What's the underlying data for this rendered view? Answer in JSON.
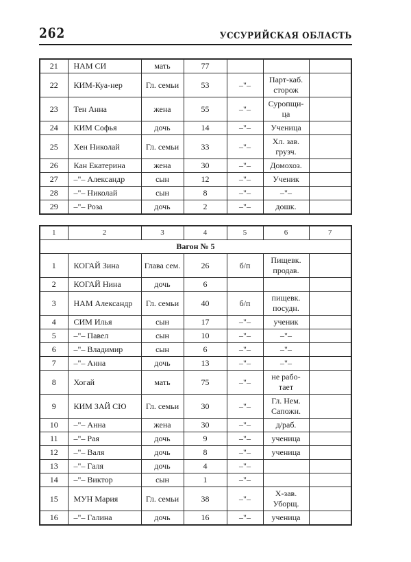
{
  "page": {
    "number": "262",
    "header": "УССУРИЙСКАЯ ОБЛАСТЬ"
  },
  "table1": {
    "rows": [
      [
        "21",
        "НАМ СИ",
        "мать",
        "77",
        "",
        "",
        ""
      ],
      [
        "22",
        "КИМ-Куа-нер",
        "Гл. семьи",
        "53",
        "–\"–",
        "Парт-каб.\nсторож",
        ""
      ],
      [
        "23",
        "Тен Анна",
        "жена",
        "55",
        "–\"–",
        "Суропщи-\nца",
        ""
      ],
      [
        "24",
        "КИМ Софья",
        "дочь",
        "14",
        "–\"–",
        "Ученица",
        ""
      ],
      [
        "25",
        "Хен Николай",
        "Гл. семьи",
        "33",
        "–\"–",
        "Хл. зав.\nгрузч.",
        ""
      ],
      [
        "26",
        "Кан Екатерина",
        "жена",
        "30",
        "–\"–",
        "Домохоз.",
        ""
      ],
      [
        "27",
        "–\"– Александр",
        "сын",
        "12",
        "–\"–",
        "Ученик",
        ""
      ],
      [
        "28",
        "–\"– Николай",
        "сын",
        "8",
        "–\"–",
        "–\"–",
        ""
      ],
      [
        "29",
        "–\"– Роза",
        "дочь",
        "2",
        "–\"–",
        "дошк.",
        ""
      ]
    ]
  },
  "table2": {
    "column_headers": [
      "1",
      "2",
      "3",
      "4",
      "5",
      "6",
      "7"
    ],
    "section_title": "Вагон № 5",
    "rows": [
      [
        "1",
        "КОГАЙ Зина",
        "Глава сем.",
        "26",
        "б/п",
        "Пищевк.\nпродав.",
        ""
      ],
      [
        "2",
        "КОГАЙ Нина",
        "дочь",
        "6",
        "",
        "",
        ""
      ],
      [
        "3",
        "НАМ Александр",
        "Гл. семьи",
        "40",
        "б/п",
        "пищевк.\nпосудн.",
        ""
      ],
      [
        "4",
        "СИМ Илья",
        "сын",
        "17",
        "–\"–",
        "ученик",
        ""
      ],
      [
        "5",
        "–\"– Павел",
        "сын",
        "10",
        "–\"–",
        "–\"–",
        ""
      ],
      [
        "6",
        "–\"– Владимир",
        "сын",
        "6",
        "–\"–",
        "–\"–",
        ""
      ],
      [
        "7",
        "–\"– Анна",
        "дочь",
        "13",
        "–\"–",
        "–\"–",
        ""
      ],
      [
        "8",
        "Хогай",
        "мать",
        "75",
        "–\"–",
        "не рабо-\nтает",
        ""
      ],
      [
        "9",
        "КИМ ЗАЙ СЮ",
        "Гл. семьи",
        "30",
        "–\"–",
        "Гл. Нем.\nСапожн.",
        ""
      ],
      [
        "10",
        "–\"– Анна",
        "жена",
        "30",
        "–\"–",
        "д/раб.",
        ""
      ],
      [
        "11",
        "–\"– Рая",
        "дочь",
        "9",
        "–\"–",
        "ученица",
        ""
      ],
      [
        "12",
        "–\"– Валя",
        "дочь",
        "8",
        "–\"–",
        "ученица",
        ""
      ],
      [
        "13",
        "–\"– Галя",
        "дочь",
        "4",
        "–\"–",
        "",
        ""
      ],
      [
        "14",
        "–\"– Виктор",
        "сын",
        "1",
        "–\"–",
        "",
        ""
      ],
      [
        "15",
        "МУН Мария",
        "Гл. семьи",
        "38",
        "–\"–",
        "Х-зав.\nУборщ.",
        ""
      ],
      [
        "16",
        "–\"– Галина",
        "дочь",
        "16",
        "–\"–",
        "ученица",
        ""
      ]
    ]
  }
}
